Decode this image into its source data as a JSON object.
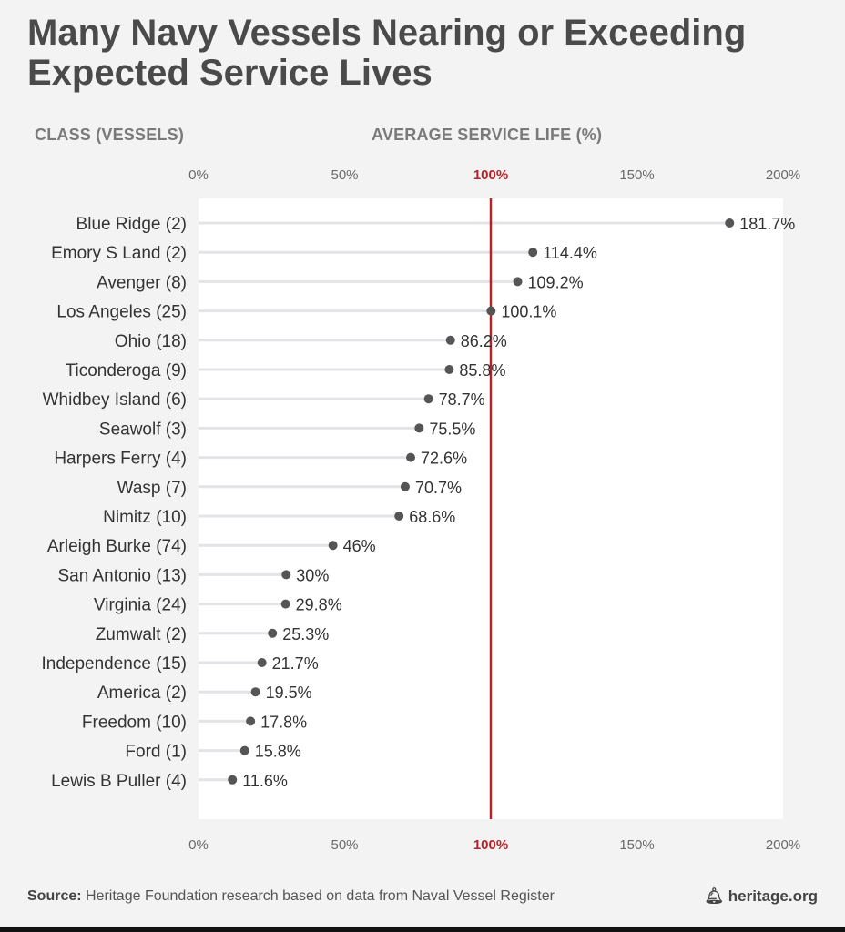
{
  "title": "Many Navy Vessels Nearing or Exceeding Expected Service Lives",
  "header": {
    "category_label": "CLASS (VESSELS)",
    "value_label": "AVERAGE SERVICE LIFE (%)"
  },
  "footer": {
    "source_label": "Source:",
    "source_text": " Heritage Foundation research based on data from Naval Vessel Register",
    "brand": "heritage.org"
  },
  "colors": {
    "reference_line": "#b5222a",
    "dot": "#555555",
    "row_line": "#e4e4e8",
    "plot_bg": "#ffffff"
  },
  "chart_data": {
    "type": "dot",
    "title": "Many Navy Vessels Nearing or Exceeding Expected Service Lives",
    "xlabel": "AVERAGE SERVICE LIFE (%)",
    "ylabel": "CLASS (VESSELS)",
    "xlim": [
      0,
      200
    ],
    "xticks": [
      0,
      50,
      100,
      150,
      200
    ],
    "xtick_labels": [
      "0%",
      "50%",
      "100%",
      "150%",
      "200%"
    ],
    "reference_value": 100,
    "categories": [
      "Blue Ridge (2)",
      "Emory S Land (2)",
      "Avenger (8)",
      "Los Angeles (25)",
      "Ohio (18)",
      "Ticonderoga (9)",
      "Whidbey Island (6)",
      "Seawolf (3)",
      "Harpers Ferry (4)",
      "Wasp (7)",
      "Nimitz (10)",
      "Arleigh Burke (74)",
      "San Antonio (13)",
      "Virginia (24)",
      "Zumwalt (2)",
      "Independence (15)",
      "America (2)",
      "Freedom (10)",
      "Ford (1)",
      "Lewis B Puller (4)"
    ],
    "values": [
      181.7,
      114.4,
      109.2,
      100.1,
      86.2,
      85.8,
      78.7,
      75.5,
      72.6,
      70.7,
      68.6,
      46,
      30,
      29.8,
      25.3,
      21.7,
      19.5,
      17.8,
      15.8,
      11.6
    ],
    "value_labels": [
      "181.7%",
      "114.4%",
      "109.2%",
      "100.1%",
      "86.2%",
      "85.8%",
      "78.7%",
      "75.5%",
      "72.6%",
      "70.7%",
      "68.6%",
      "46%",
      "30%",
      "29.8%",
      "25.3%",
      "21.7%",
      "19.5%",
      "17.8%",
      "15.8%",
      "11.6%"
    ]
  }
}
